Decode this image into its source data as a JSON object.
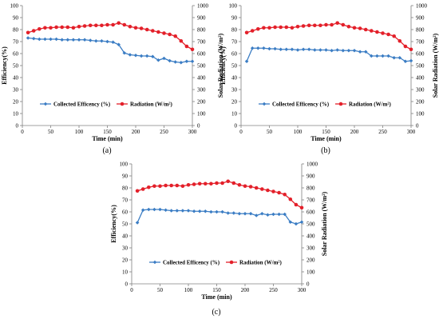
{
  "colors": {
    "efficiency": "#3b7dc4",
    "radiation": "#e3202a",
    "axis": "#808080",
    "text": "#000000"
  },
  "chart_data": [
    {
      "panel_label": "(a)",
      "type": "line",
      "xlabel": "Time (min)",
      "ylabel_left": "Efficiency(%)",
      "ylabel_right": "Solar Radiation (W/m²)",
      "xlim": [
        0,
        300
      ],
      "xticks": [
        "0",
        "50",
        "100",
        "150",
        "200",
        "250",
        "300"
      ],
      "ylim_left": [
        0,
        100
      ],
      "yticks_left": [
        "0",
        "10",
        "20",
        "30",
        "40",
        "50",
        "60",
        "70",
        "80",
        "90",
        "100"
      ],
      "ylim_right": [
        0,
        1000
      ],
      "yticks_right": [
        "0",
        "100",
        "200",
        "300",
        "400",
        "500",
        "600",
        "700",
        "800",
        "900",
        "1000"
      ],
      "legend": "bottom",
      "grid": false,
      "series": [
        {
          "name": "Collected Efficency (%)",
          "axis": "left",
          "marker": "diamond",
          "x": [
            10,
            20,
            30,
            40,
            50,
            60,
            70,
            80,
            90,
            100,
            110,
            120,
            130,
            140,
            150,
            160,
            170,
            180,
            190,
            200,
            210,
            220,
            230,
            240,
            250,
            260,
            270,
            280,
            290,
            300
          ],
          "y": [
            73,
            72.5,
            72,
            72,
            72,
            72,
            71.5,
            71.5,
            71.5,
            71.5,
            71.5,
            71,
            70.5,
            70.5,
            70,
            69.5,
            67.5,
            60.5,
            59,
            58.5,
            58,
            58,
            57.5,
            54.5,
            56,
            54,
            53,
            52.5,
            53.5,
            53.5
          ]
        },
        {
          "name": "Radiation (W/m²)",
          "axis": "right",
          "marker": "circle",
          "x": [
            10,
            20,
            30,
            40,
            50,
            60,
            70,
            80,
            90,
            100,
            110,
            120,
            130,
            140,
            150,
            160,
            170,
            180,
            190,
            200,
            210,
            220,
            230,
            240,
            250,
            260,
            270,
            280,
            290,
            300
          ],
          "y": [
            775,
            790,
            805,
            815,
            815,
            820,
            820,
            820,
            815,
            825,
            830,
            835,
            835,
            835,
            840,
            840,
            855,
            840,
            825,
            815,
            810,
            800,
            790,
            780,
            770,
            760,
            745,
            705,
            660,
            635
          ]
        }
      ]
    },
    {
      "panel_label": "(b)",
      "type": "line",
      "xlabel": "Time (min)",
      "ylabel_left": "Efficiency(%)",
      "ylabel_right": "Solar Radiation (W/m²)",
      "xlim": [
        0,
        300
      ],
      "xticks": [
        "0",
        "50",
        "100",
        "150",
        "200",
        "250",
        "300"
      ],
      "ylim_left": [
        0,
        100
      ],
      "yticks_left": [
        "0",
        "10",
        "20",
        "30",
        "40",
        "50",
        "60",
        "70",
        "80",
        "90",
        "100"
      ],
      "ylim_right": [
        0,
        1000
      ],
      "yticks_right": [
        "0",
        "100",
        "200",
        "300",
        "400",
        "500",
        "600",
        "700",
        "800",
        "900",
        "1000"
      ],
      "legend": "bottom",
      "grid": false,
      "series": [
        {
          "name": "Collected Efficency (%)",
          "axis": "left",
          "marker": "diamond",
          "x": [
            10,
            20,
            30,
            40,
            50,
            60,
            70,
            80,
            90,
            100,
            110,
            120,
            130,
            140,
            150,
            160,
            170,
            180,
            190,
            200,
            210,
            220,
            230,
            240,
            250,
            260,
            270,
            280,
            290,
            300
          ],
          "y": [
            53.5,
            64.5,
            64.5,
            64.5,
            64,
            64,
            63.5,
            63.5,
            63.5,
            63,
            63.5,
            63.5,
            63,
            63,
            63,
            62.5,
            63,
            62.5,
            62.5,
            62.5,
            61.5,
            61.5,
            58,
            58,
            58,
            58,
            56.5,
            56.5,
            53.5,
            54
          ]
        },
        {
          "name": "Radiation (W/m²)",
          "axis": "right",
          "marker": "circle",
          "x": [
            10,
            20,
            30,
            40,
            50,
            60,
            70,
            80,
            90,
            100,
            110,
            120,
            130,
            140,
            150,
            160,
            170,
            180,
            190,
            200,
            210,
            220,
            230,
            240,
            250,
            260,
            270,
            280,
            290,
            300
          ],
          "y": [
            775,
            790,
            805,
            815,
            815,
            820,
            820,
            820,
            815,
            825,
            830,
            835,
            835,
            835,
            840,
            840,
            855,
            840,
            825,
            815,
            810,
            800,
            790,
            780,
            770,
            760,
            745,
            705,
            660,
            635
          ]
        }
      ]
    },
    {
      "panel_label": "(c)",
      "type": "line",
      "xlabel": "Time (min)",
      "ylabel_left": "Efficiency(%)",
      "ylabel_right": "Solar Radiation (W/m²)",
      "xlim": [
        0,
        300
      ],
      "xticks": [
        "0",
        "50",
        "100",
        "150",
        "200",
        "250",
        "300"
      ],
      "ylim_left": [
        0,
        100
      ],
      "yticks_left": [
        "0",
        "10",
        "20",
        "30",
        "40",
        "50",
        "60",
        "70",
        "80",
        "90",
        "100"
      ],
      "ylim_right": [
        0,
        1000
      ],
      "yticks_right": [
        "0",
        "100",
        "200",
        "300",
        "400",
        "500",
        "600",
        "700",
        "800",
        "900",
        "1000"
      ],
      "legend": "bottom",
      "grid": false,
      "series": [
        {
          "name": "Collected Efficency (%)",
          "axis": "left",
          "marker": "diamond",
          "x": [
            10,
            20,
            30,
            40,
            50,
            60,
            70,
            80,
            90,
            100,
            110,
            120,
            130,
            140,
            150,
            160,
            170,
            180,
            190,
            200,
            210,
            220,
            230,
            240,
            250,
            260,
            270,
            280,
            290,
            300
          ],
          "y": [
            51,
            61.5,
            62,
            62,
            62,
            61.5,
            61,
            61,
            61,
            61,
            60.5,
            60.5,
            60.5,
            60,
            60,
            60,
            59,
            59,
            58.5,
            58.5,
            58.5,
            57,
            58.5,
            57.5,
            58,
            58,
            58,
            51.5,
            50,
            51.5
          ]
        },
        {
          "name": "Radiation (W/m²)",
          "axis": "right",
          "marker": "circle",
          "x": [
            10,
            20,
            30,
            40,
            50,
            60,
            70,
            80,
            90,
            100,
            110,
            120,
            130,
            140,
            150,
            160,
            170,
            180,
            190,
            200,
            210,
            220,
            230,
            240,
            250,
            260,
            270,
            280,
            290,
            300
          ],
          "y": [
            775,
            790,
            805,
            815,
            815,
            820,
            820,
            820,
            815,
            825,
            830,
            835,
            835,
            835,
            840,
            840,
            855,
            840,
            825,
            815,
            810,
            800,
            790,
            780,
            770,
            760,
            745,
            705,
            660,
            635
          ]
        }
      ]
    }
  ]
}
